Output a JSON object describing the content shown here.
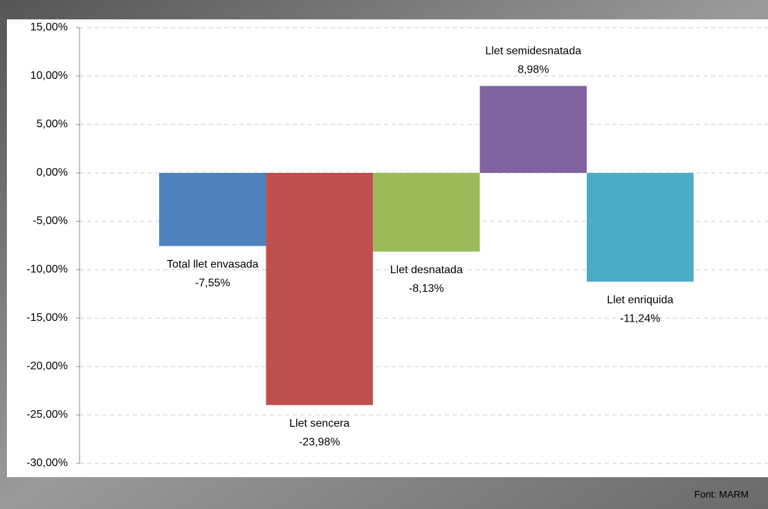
{
  "chart_data": {
    "type": "bar",
    "categories": [
      "Total llet envasada",
      "Llet sencera",
      "Llet desnatada",
      "Llet semidesnatada",
      "Llet enriquida"
    ],
    "values": [
      -7.55,
      -23.98,
      -8.13,
      8.98,
      -11.24
    ],
    "value_labels": [
      "-7,55%",
      "-23,98%",
      "-8,13%",
      "8,98%",
      "-11,24%"
    ],
    "colors": [
      "#4f81bd",
      "#c0504d",
      "#9bbb59",
      "#8064a2",
      "#4bacc6"
    ],
    "ylim": [
      -30,
      15
    ],
    "yticks": [
      {
        "value": -30,
        "label": "-30,00%"
      },
      {
        "value": -25,
        "label": "-25,00%"
      },
      {
        "value": -20,
        "label": "-20,00%"
      },
      {
        "value": -15,
        "label": "-15,00%"
      },
      {
        "value": -10,
        "label": "-10,00%"
      },
      {
        "value": -5,
        "label": "-5,00%"
      },
      {
        "value": 0,
        "label": "0,00%"
      },
      {
        "value": 5,
        "label": "5,00%"
      },
      {
        "value": 10,
        "label": "10,00%"
      },
      {
        "value": 15,
        "label": "15,00%"
      }
    ],
    "grid": true,
    "source": "Font: MARM"
  }
}
